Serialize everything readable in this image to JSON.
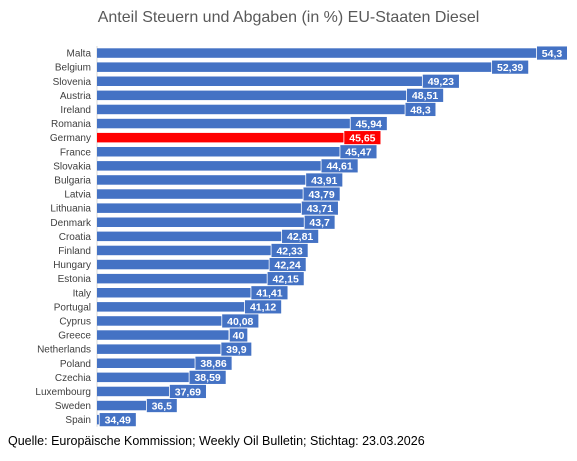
{
  "chart_data": {
    "type": "bar",
    "orientation": "horizontal",
    "title": "Anteil Steuern und Abgaben (in %) EU-Staaten Diesel",
    "xlim": [
      34,
      54.3
    ],
    "grid": false,
    "legend": "none",
    "colors": {
      "default": "#4472C4",
      "highlight": "#FF0000"
    },
    "highlight_category": "Germany",
    "categories": [
      "Malta",
      "Belgium",
      "Slovenia",
      "Austria",
      "Ireland",
      "Romania",
      "Germany",
      "France",
      "Slovakia",
      "Bulgaria",
      "Latvia",
      "Lithuania",
      "Denmark",
      "Croatia",
      "Finland",
      "Hungary",
      "Estonia",
      "Italy",
      "Portugal",
      "Cyprus",
      "Greece",
      "Netherlands",
      "Poland",
      "Czechia",
      "Luxembourg",
      "Sweden",
      "Spain"
    ],
    "values": [
      54.3,
      52.39,
      49.23,
      48.51,
      48.3,
      45.94,
      45.65,
      45.47,
      44.61,
      43.91,
      43.79,
      43.71,
      43.7,
      42.81,
      42.33,
      42.24,
      42.15,
      41.41,
      41.12,
      40.08,
      40,
      39.9,
      38.86,
      38.59,
      37.69,
      36.5,
      34.49
    ],
    "value_labels": [
      "54,3",
      "52,39",
      "49,23",
      "48,51",
      "48,3",
      "45,94",
      "45,65",
      "45,47",
      "44,61",
      "43,91",
      "43,79",
      "43,71",
      "43,7",
      "42,81",
      "42,33",
      "42,24",
      "42,15",
      "41,41",
      "41,12",
      "40,08",
      "40",
      "39,9",
      "38,86",
      "38,59",
      "37,69",
      "36,5",
      "34,49"
    ]
  },
  "source": "Quelle: Europäische Kommission; Weekly Oil Bulletin; Stichtag: 23.03.2026"
}
